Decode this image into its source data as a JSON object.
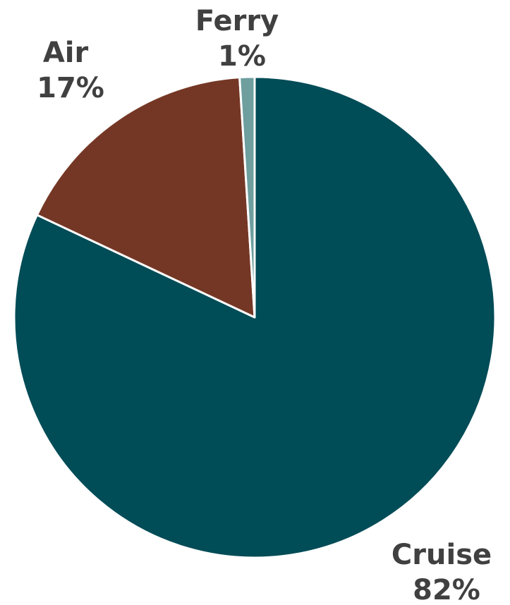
{
  "chart_data": {
    "type": "pie",
    "title": "",
    "start_angle_deg": 0,
    "direction": "clockwise",
    "slices": [
      {
        "label": "Cruise",
        "value": 82,
        "value_text": "82%",
        "color": "#004c57"
      },
      {
        "label": "Air",
        "value": 17,
        "value_text": "17%",
        "color": "#753725"
      },
      {
        "label": "Ferry",
        "value": 1,
        "value_text": "1%",
        "color": "#6e9e9e"
      }
    ]
  }
}
